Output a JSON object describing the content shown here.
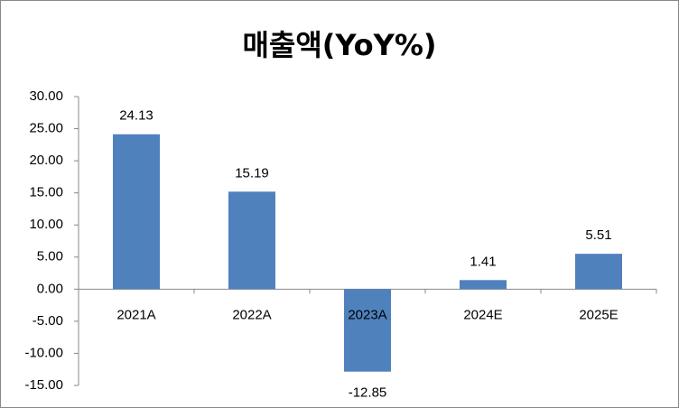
{
  "chart_data": {
    "type": "bar",
    "title": "매출액(YoY%)",
    "categories": [
      "2021A",
      "2022A",
      "2023A",
      "2024E",
      "2025E"
    ],
    "values": [
      24.13,
      15.19,
      -12.85,
      1.41,
      5.51
    ],
    "color": "#4f81bd",
    "ylim": [
      -15,
      30
    ],
    "yticks": [
      {
        "value": -15,
        "label": "-15.00"
      },
      {
        "value": -10,
        "label": "-10.00"
      },
      {
        "value": -5,
        "label": "-5.00"
      },
      {
        "value": 0,
        "label": "0.00"
      },
      {
        "value": 5,
        "label": "5.00"
      },
      {
        "value": 10,
        "label": "10.00"
      },
      {
        "value": 15,
        "label": "15.00"
      },
      {
        "value": 20,
        "label": "20.00"
      },
      {
        "value": 25,
        "label": "25.00"
      },
      {
        "value": 30,
        "label": "30.00"
      }
    ],
    "grid": false
  }
}
